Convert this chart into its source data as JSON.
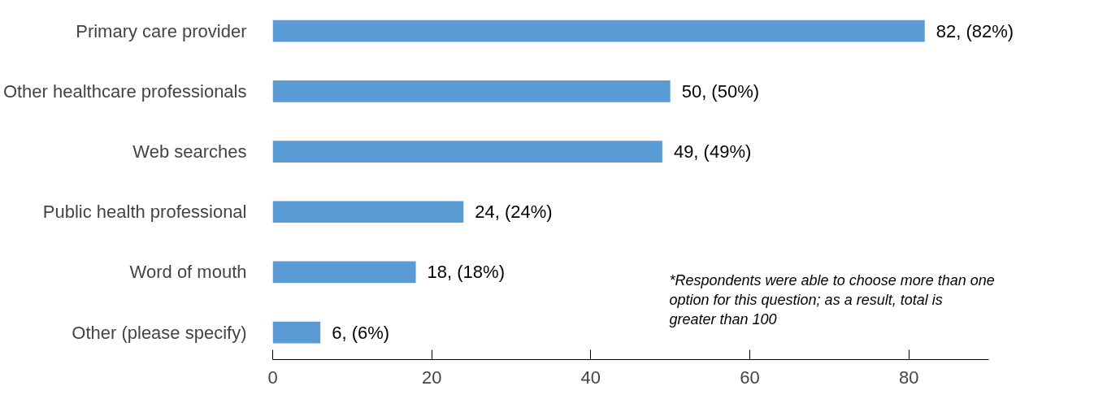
{
  "chart_data": {
    "type": "bar",
    "orientation": "horizontal",
    "categories": [
      "Primary care provider",
      "Other healthcare professionals",
      "Web searches",
      "Public health professional",
      "Word of mouth",
      "Other (please specify)"
    ],
    "values": [
      82,
      50,
      49,
      24,
      18,
      6
    ],
    "value_labels": [
      "82, (82%)",
      "50, (50%)",
      "49, (49%)",
      "24, (24%)",
      "18, (18%)",
      "6, (6%)"
    ],
    "color": "#5b9bd5",
    "xlim": [
      0,
      90
    ],
    "xticks": [
      0,
      20,
      40,
      60,
      80
    ],
    "grid": false,
    "annotations": [
      "*Respondents were able to choose more than one option for this question; as a result, total is greater than 100"
    ]
  }
}
